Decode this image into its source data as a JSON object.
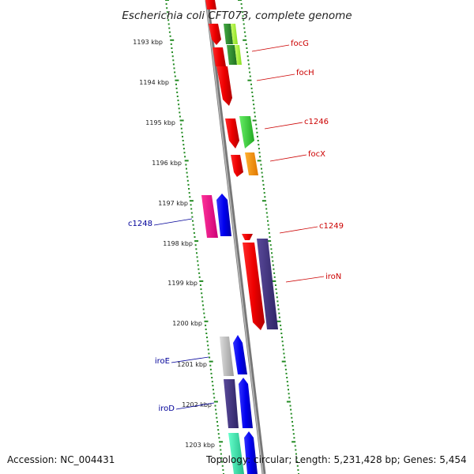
{
  "title": "Escherichia coli CFT073, complete genome",
  "footer": {
    "accession": "Accession: NC_004431",
    "topology": "Topology: circular; Length: 5,231,428 bp; Genes: 5,454"
  },
  "ticks": [
    "1193 kbp",
    "1194 kbp",
    "1195 kbp",
    "1196 kbp",
    "1197 kbp",
    "1198 kbp",
    "1199 kbp",
    "1200 kbp",
    "1201 kbp",
    "1202 kbp",
    "1203 kbp"
  ],
  "gene_labels_forward": [
    "focG",
    "focH",
    "c1246",
    "focX",
    "c1249",
    "iroN"
  ],
  "gene_labels_reverse": [
    "c1248",
    "iroE",
    "iroD"
  ],
  "colors": {
    "forward_label": "#cc0000",
    "reverse_label": "#000099",
    "tick_green": "#228b22",
    "backbone": "#888888"
  }
}
